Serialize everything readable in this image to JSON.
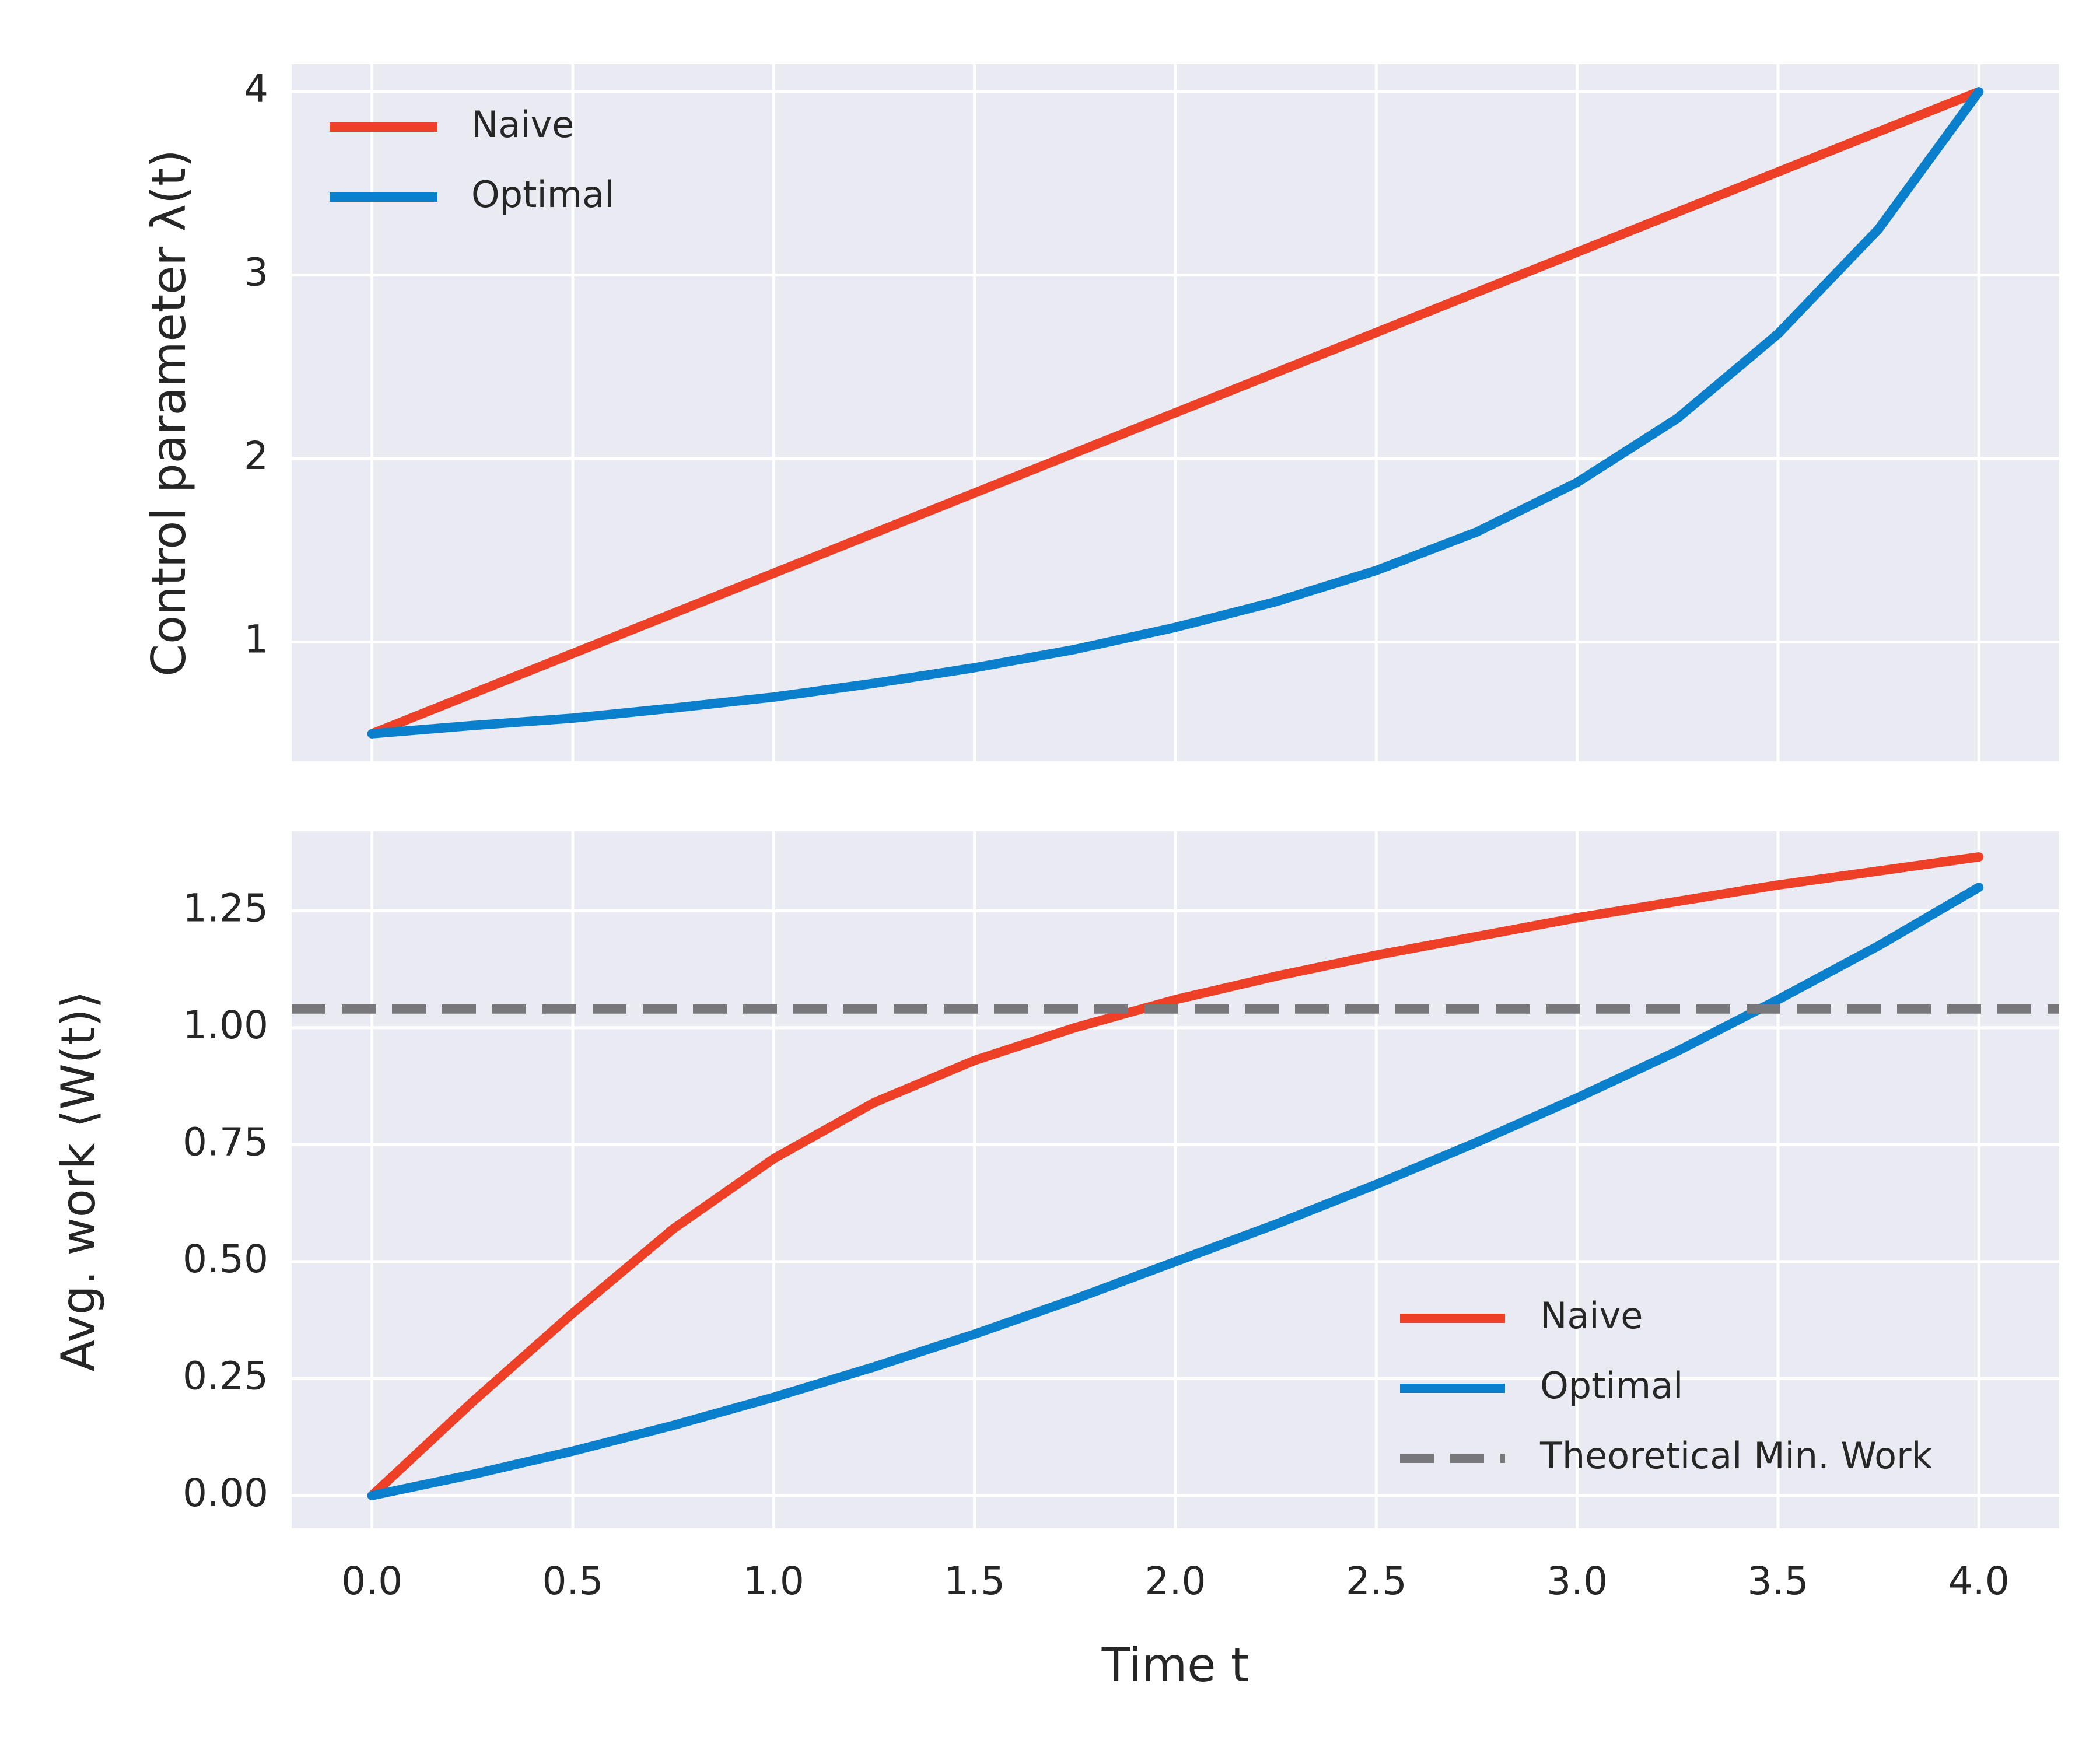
{
  "chart_data": [
    {
      "type": "line",
      "panel": "top",
      "title": "",
      "xlabel": "",
      "ylabel": "Control parameter λ(t)",
      "xlim": [
        -0.2,
        4.2
      ],
      "ylim": [
        0.35,
        4.15
      ],
      "xticks": [
        0.0,
        0.5,
        1.0,
        1.5,
        2.0,
        2.5,
        3.0,
        3.5,
        4.0
      ],
      "yticks": [
        1,
        2,
        3,
        4
      ],
      "ytick_labels": [
        "1",
        "2",
        "3",
        "4"
      ],
      "grid": true,
      "legend_position": "top-left",
      "series": [
        {
          "name": "Naive",
          "color": "#ee4027",
          "x": [
            0.0,
            4.0
          ],
          "y": [
            0.5,
            4.0
          ]
        },
        {
          "name": "Optimal",
          "color": "#0a80cc",
          "x": [
            0.0,
            0.25,
            0.5,
            0.75,
            1.0,
            1.25,
            1.5,
            1.75,
            2.0,
            2.25,
            2.5,
            2.75,
            3.0,
            3.25,
            3.5,
            3.75,
            4.0
          ],
          "y": [
            0.5,
            0.545,
            0.585,
            0.64,
            0.7,
            0.775,
            0.86,
            0.96,
            1.08,
            1.22,
            1.39,
            1.6,
            1.87,
            2.22,
            2.68,
            3.25,
            4.0
          ]
        }
      ]
    },
    {
      "type": "line",
      "panel": "bottom",
      "title": "",
      "xlabel": "Time t",
      "ylabel": "Avg. work ⟨W(t)⟩",
      "xlim": [
        -0.2,
        4.2
      ],
      "ylim": [
        -0.07,
        1.42
      ],
      "xticks": [
        0.0,
        0.5,
        1.0,
        1.5,
        2.0,
        2.5,
        3.0,
        3.5,
        4.0
      ],
      "xtick_labels": [
        "0.0",
        "0.5",
        "1.0",
        "1.5",
        "2.0",
        "2.5",
        "3.0",
        "3.5",
        "4.0"
      ],
      "yticks": [
        0.0,
        0.25,
        0.5,
        0.75,
        1.0,
        1.25
      ],
      "ytick_labels": [
        "0.00",
        "0.25",
        "0.50",
        "0.75",
        "1.00",
        "1.25"
      ],
      "grid": true,
      "legend_position": "lower-right",
      "series": [
        {
          "name": "Naive",
          "color": "#ee4027",
          "x": [
            0.0,
            0.25,
            0.5,
            0.75,
            1.0,
            1.25,
            1.5,
            1.75,
            2.0,
            2.25,
            2.5,
            2.75,
            3.0,
            3.25,
            3.5,
            3.75,
            4.0
          ],
          "y": [
            0.0,
            0.2,
            0.39,
            0.57,
            0.72,
            0.84,
            0.93,
            1.0,
            1.06,
            1.11,
            1.155,
            1.195,
            1.235,
            1.27,
            1.305,
            1.335,
            1.365
          ]
        },
        {
          "name": "Optimal",
          "color": "#0a80cc",
          "x": [
            0.0,
            0.25,
            0.5,
            0.75,
            1.0,
            1.25,
            1.5,
            1.75,
            2.0,
            2.25,
            2.5,
            2.75,
            3.0,
            3.25,
            3.5,
            3.75,
            4.0
          ],
          "y": [
            0.0,
            0.045,
            0.095,
            0.15,
            0.21,
            0.275,
            0.345,
            0.42,
            0.5,
            0.58,
            0.665,
            0.755,
            0.85,
            0.95,
            1.06,
            1.175,
            1.3
          ]
        },
        {
          "name": "Theoretical Min. Work",
          "color": "#77777c",
          "dashed": true,
          "hline": 1.04
        }
      ]
    }
  ]
}
